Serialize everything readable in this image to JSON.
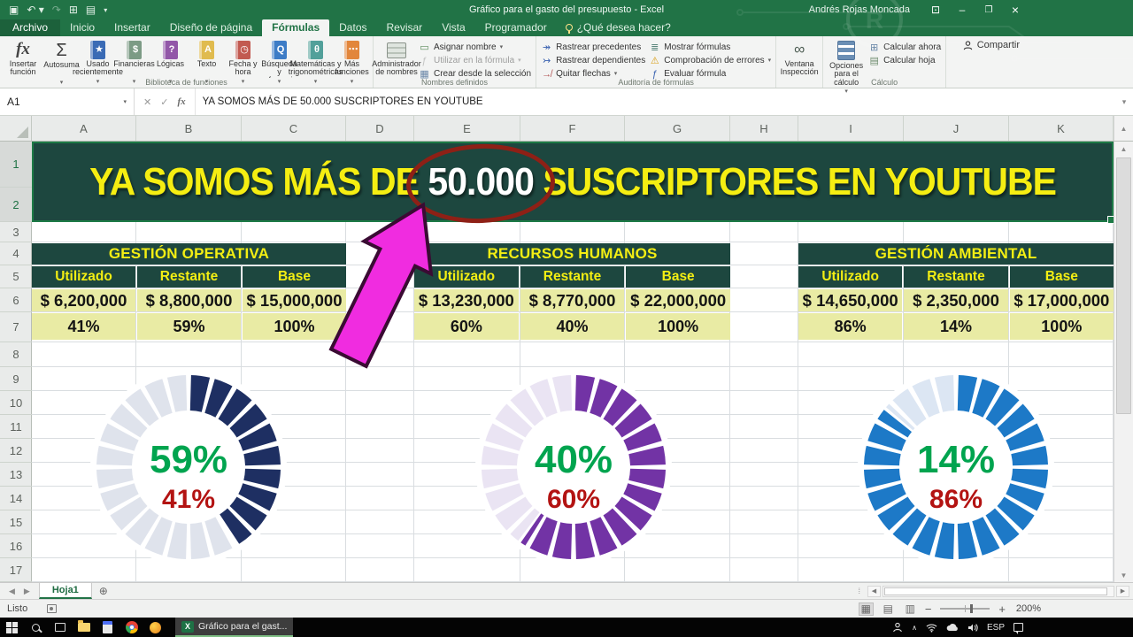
{
  "window": {
    "title": "Gráfico para el gasto del presupuesto  -  Excel",
    "user": "Andrés Rojas Moncada",
    "share_label": "Compartir"
  },
  "ribbon": {
    "tabs": [
      {
        "label": "Archivo",
        "style": "file"
      },
      {
        "label": "Inicio"
      },
      {
        "label": "Insertar"
      },
      {
        "label": "Diseño de página"
      },
      {
        "label": "Fórmulas",
        "active": true
      },
      {
        "label": "Datos"
      },
      {
        "label": "Revisar"
      },
      {
        "label": "Vista"
      },
      {
        "label": "Programador"
      }
    ],
    "tell_me": "¿Qué desea hacer?",
    "groups": [
      {
        "name": "Biblioteca de funciones",
        "items": [
          {
            "label": "Insertar función",
            "icon": "insert-function",
            "large": true
          },
          {
            "label": "Autosuma",
            "icon": "autosum",
            "arrow": true
          },
          {
            "label": "Usado recientemente",
            "icon": "recently-used",
            "arrow": true
          },
          {
            "label": "Financieras",
            "icon": "financial",
            "arrow": true
          },
          {
            "label": "Lógicas",
            "icon": "logical",
            "arrow": true
          },
          {
            "label": "Texto",
            "icon": "text",
            "arrow": true
          },
          {
            "label": "Fecha y hora",
            "icon": "date-time",
            "arrow": true
          },
          {
            "label": "Búsqueda y referencia",
            "icon": "lookup",
            "arrow": true
          },
          {
            "label": "Matemáticas y trigonométricas",
            "icon": "math-trig",
            "arrow": true
          },
          {
            "label": "Más funciones",
            "icon": "more-functions",
            "arrow": true
          }
        ]
      },
      {
        "name": "Nombres definidos",
        "items": [
          {
            "label": "Administrador de nombres",
            "icon": "name-manager",
            "large": true
          },
          {
            "label": "Asignar nombre",
            "icon": "define-name",
            "small": true,
            "arrow": true
          },
          {
            "label": "Utilizar en la fórmula",
            "icon": "use-in-formula",
            "small": true,
            "arrow": true,
            "disabled": true
          },
          {
            "label": "Crear desde la selección",
            "icon": "create-from-selection",
            "small": true
          }
        ]
      },
      {
        "name": "Auditoría de fórmulas",
        "cols": [
          [
            {
              "label": "Rastrear precedentes",
              "icon": "trace-precedents"
            },
            {
              "label": "Rastrear dependientes",
              "icon": "trace-dependents"
            },
            {
              "label": "Quitar flechas",
              "icon": "remove-arrows",
              "arrow": true
            }
          ],
          [
            {
              "label": "Mostrar fórmulas",
              "icon": "show-formulas"
            },
            {
              "label": "Comprobación de errores",
              "icon": "error-checking",
              "arrow": true
            },
            {
              "label": "Evaluar fórmula",
              "icon": "evaluate-formula"
            }
          ]
        ]
      },
      {
        "name": "",
        "items": [
          {
            "label": "Ventana Inspección",
            "icon": "watch-window",
            "large": true
          }
        ]
      },
      {
        "name": "Cálculo",
        "items": [
          {
            "label": "Opciones para el cálculo",
            "icon": "calculation-options",
            "large": true,
            "arrow": true
          },
          {
            "label": "Calcular ahora",
            "icon": "calculate-now",
            "small": true
          },
          {
            "label": "Calcular hoja",
            "icon": "calculate-sheet",
            "small": true
          }
        ]
      }
    ]
  },
  "formula_bar": {
    "cell_ref": "A1",
    "formula": "YA SOMOS MÁS DE 50.000 SUSCRIPTORES EN YOUTUBE"
  },
  "sheet": {
    "columns": [
      "A",
      "B",
      "C",
      "D",
      "E",
      "F",
      "G",
      "H",
      "I",
      "J",
      "K"
    ],
    "rows": [
      "1",
      "2",
      "3",
      "4",
      "5",
      "6",
      "7",
      "8",
      "9",
      "10",
      "11",
      "12",
      "13",
      "14",
      "15",
      "16",
      "17"
    ],
    "banner": {
      "before": "YA SOMOS MÁS DE ",
      "highlight": "50.000",
      "after": " SUSCRIPTORES EN YOUTUBE"
    },
    "tables": [
      {
        "title": "GESTIÓN OPERATIVA",
        "headers": [
          "Utilizado",
          "Restante",
          "Base"
        ],
        "amounts": [
          "$ 6,200,000",
          "$ 8,800,000",
          "$ 15,000,000"
        ],
        "percents": [
          "41%",
          "59%",
          "100%"
        ]
      },
      {
        "title": "RECURSOS HUMANOS",
        "headers": [
          "Utilizado",
          "Restante",
          "Base"
        ],
        "amounts": [
          "$ 13,230,000",
          "$ 8,770,000",
          "$ 22,000,000"
        ],
        "percents": [
          "60%",
          "40%",
          "100%"
        ]
      },
      {
        "title": "GESTIÓN AMBIENTAL",
        "headers": [
          "Utilizado",
          "Restante",
          "Base"
        ],
        "amounts": [
          "$ 14,650,000",
          "$ 2,350,000",
          "$ 17,000,000"
        ],
        "percents": [
          "86%",
          "14%",
          "100%"
        ]
      }
    ],
    "sheet_tab": "Hoja1"
  },
  "chart_data": [
    {
      "type": "pie",
      "subtype": "segmented_donut",
      "title": "GESTIÓN OPERATIVA",
      "segments": 24,
      "slices": [
        {
          "label": "Utilizado",
          "value": 41,
          "color": "#1e2f62"
        },
        {
          "label": "Restante",
          "value": 59,
          "color": "#dfe3ec"
        }
      ],
      "center_primary": {
        "text": "59%",
        "color": "#00a44f"
      },
      "center_secondary": {
        "text": "41%",
        "color": "#b31312"
      }
    },
    {
      "type": "pie",
      "subtype": "segmented_donut",
      "title": "RECURSOS HUMANOS",
      "segments": 24,
      "slices": [
        {
          "label": "Utilizado",
          "value": 60,
          "color": "#7233a5"
        },
        {
          "label": "Restante",
          "value": 40,
          "color": "#eae4f3"
        }
      ],
      "center_primary": {
        "text": "40%",
        "color": "#00a44f"
      },
      "center_secondary": {
        "text": "60%",
        "color": "#b31312"
      }
    },
    {
      "type": "pie",
      "subtype": "segmented_donut",
      "title": "GESTIÓN AMBIENTAL",
      "segments": 24,
      "slices": [
        {
          "label": "Utilizado",
          "value": 86,
          "color": "#1d79c7"
        },
        {
          "label": "Restante",
          "value": 14,
          "color": "#dce6f3"
        }
      ],
      "center_primary": {
        "text": "14%",
        "color": "#00a44f"
      },
      "center_secondary": {
        "text": "86%",
        "color": "#b31312"
      }
    }
  ],
  "status_bar": {
    "ready": "Listo",
    "zoom": "200%"
  },
  "taskbar": {
    "excel_button": "Gráfico para el gast...",
    "language": "ESP"
  },
  "colors": {
    "excel_green": "#217346",
    "banner_bg": "#1d473f",
    "banner_yellow": "#f5ee12",
    "table_cell_bg": "#e9eba4",
    "ellipse_red": "#8e2016",
    "arrow_pink": "#f02ce0"
  }
}
